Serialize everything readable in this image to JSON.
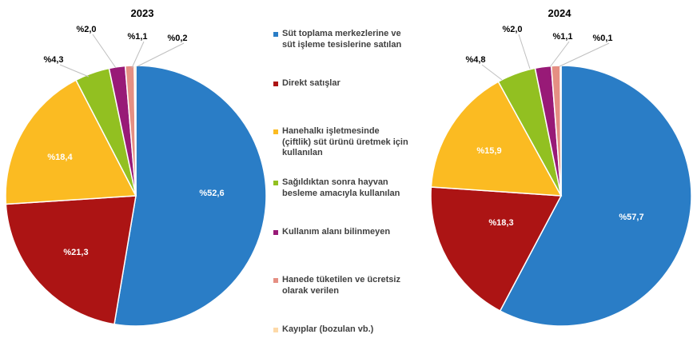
{
  "chart_data": [
    {
      "type": "pie",
      "title": "2023",
      "categories": [
        "Süt toplama merkezlerine ve\nsüt işleme tesislerine satılan",
        "Direkt satışlar",
        "Hanehalkı işletmesinde\n(çiftlik) süt ürünü üretmek için\nkullanılan",
        "Sağıldıktan sonra hayvan\nbesleme amacıyla kullanılan",
        "Kullanım alanı bilinmeyen",
        "Hanede tüketilen ve ücretsiz\nolarak verilen",
        "Kayıplar (bozulan vb.)"
      ],
      "values": [
        52.6,
        21.3,
        18.4,
        4.3,
        2.0,
        1.1,
        0.2
      ],
      "labels": [
        "%52,6",
        "%21,3",
        "%18,4",
        "%4,3",
        "%2,0",
        "%1,1",
        "%0,2"
      ]
    },
    {
      "type": "pie",
      "title": "2024",
      "categories": [
        "Süt toplama merkezlerine ve\nsüt işleme tesislerine satılan",
        "Direkt satışlar",
        "Hanehalkı işletmesinde\n(çiftlik) süt ürünü üretmek için\nkullanılan",
        "Sağıldıktan sonra hayvan\nbesleme amacıyla kullanılan",
        "Kullanım alanı bilinmeyen",
        "Hanede tüketilen ve ücretsiz\nolarak verilen",
        "Kayıplar (bozulan vb.)"
      ],
      "values": [
        57.7,
        18.3,
        15.9,
        4.8,
        2.0,
        1.1,
        0.1
      ],
      "labels": [
        "%57,7",
        "%18,3",
        "%15,9",
        "%4,8",
        "%2,0",
        "%1,1",
        "%0,1"
      ]
    }
  ],
  "legend": {
    "position": "center",
    "items": [
      {
        "label": "Süt toplama merkezlerine ve\nsüt işleme tesislerine satılan",
        "color": "#2a7dc6"
      },
      {
        "label": "Direkt satışlar",
        "color": "#ac1414"
      },
      {
        "label": "Hanehalkı işletmesinde\n(çiftlik) süt ürünü üretmek için\nkullanılan",
        "color": "#fbbb22"
      },
      {
        "label": "Sağıldıktan sonra hayvan\nbesleme amacıyla kullanılan",
        "color": "#92c021"
      },
      {
        "label": "Kullanım alanı bilinmeyen",
        "color": "#981a77"
      },
      {
        "label": "Hanede tüketilen ve ücretsiz\nolarak verilen",
        "color": "#e58f83"
      },
      {
        "label": "Kayıplar (bozulan vb.)",
        "color": "#fdd9a8"
      }
    ]
  }
}
